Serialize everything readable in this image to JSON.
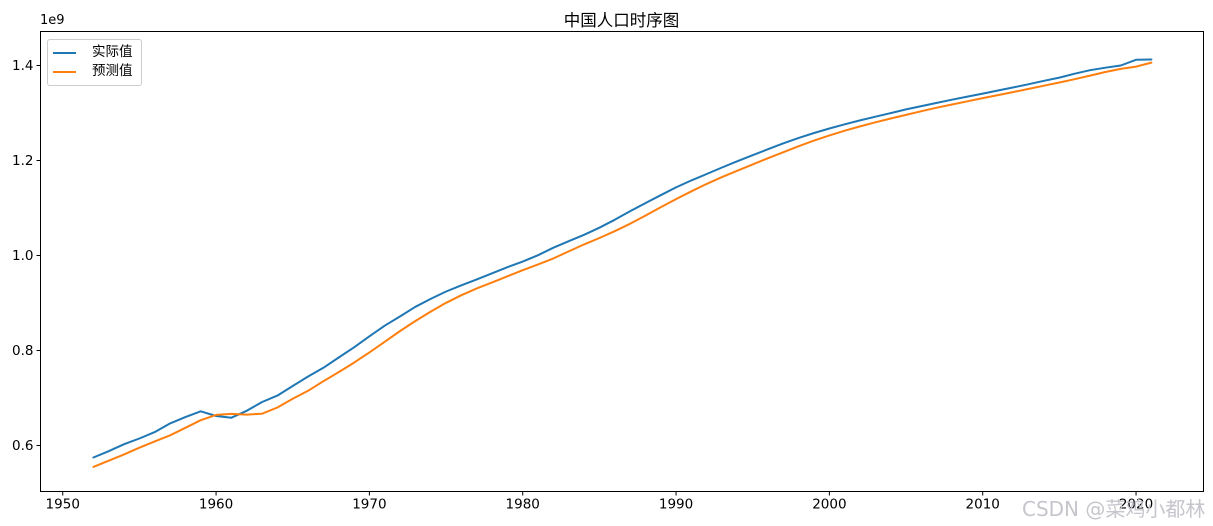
{
  "figure": {
    "watermark": "CSDN @菜鸡小都林",
    "background": "#ffffff",
    "spine_color": "#000000",
    "legend_border_color": "#cccccc"
  },
  "chart_data": {
    "type": "line",
    "title": "中国人口时序图",
    "xlabel": "",
    "ylabel": "",
    "y_offset_label": "1e9",
    "grid": false,
    "legend_position": "upper left",
    "xlim": [
      1948.55,
      2024.4
    ],
    "ylim": [
      0.5032,
      1.4716
    ],
    "xtick_values": [
      1950,
      1960,
      1970,
      1980,
      1990,
      2000,
      2010,
      2020
    ],
    "xtick_labels": [
      "1950",
      "1960",
      "1970",
      "1980",
      "1990",
      "2000",
      "2010",
      "2020"
    ],
    "ytick_values": [
      0.6,
      0.8,
      1.0,
      1.2,
      1.4
    ],
    "ytick_labels": [
      "0.6",
      "0.8",
      "1.0",
      "1.2",
      "1.4"
    ],
    "x": [
      1952,
      1953,
      1954,
      1955,
      1956,
      1957,
      1958,
      1959,
      1960,
      1961,
      1962,
      1963,
      1964,
      1965,
      1966,
      1967,
      1968,
      1969,
      1970,
      1971,
      1972,
      1973,
      1974,
      1975,
      1976,
      1977,
      1978,
      1979,
      1980,
      1981,
      1982,
      1983,
      1984,
      1985,
      1986,
      1987,
      1988,
      1989,
      1990,
      1991,
      1992,
      1993,
      1994,
      1995,
      1996,
      1997,
      1998,
      1999,
      2000,
      2001,
      2002,
      2003,
      2004,
      2005,
      2006,
      2007,
      2008,
      2009,
      2010,
      2011,
      2012,
      2013,
      2014,
      2015,
      2016,
      2017,
      2018,
      2019,
      2020,
      2021
    ],
    "series": [
      {
        "name": "实际值",
        "color": "#1f77b4",
        "values": [
          0.5748,
          0.588,
          0.6027,
          0.6147,
          0.6283,
          0.6465,
          0.6599,
          0.6721,
          0.6621,
          0.6586,
          0.673,
          0.6917,
          0.705,
          0.7254,
          0.7454,
          0.7637,
          0.7853,
          0.8067,
          0.8299,
          0.8523,
          0.8718,
          0.8921,
          0.9086,
          0.9242,
          0.9372,
          0.9497,
          0.9626,
          0.9754,
          0.9871,
          1.0007,
          1.0165,
          1.0301,
          1.0436,
          1.0585,
          1.0751,
          1.093,
          1.1103,
          1.127,
          1.1433,
          1.1582,
          1.1717,
          1.1852,
          1.1985,
          1.2112,
          1.2239,
          1.2363,
          1.2476,
          1.2579,
          1.2674,
          1.2763,
          1.2845,
          1.2923,
          1.2999,
          1.3076,
          1.3145,
          1.3213,
          1.328,
          1.3345,
          1.3409,
          1.3474,
          1.354,
          1.3607,
          1.3678,
          1.3746,
          1.3827,
          1.3901,
          1.3954,
          1.4,
          1.4121,
          1.4126
        ]
      },
      {
        "name": "预测值",
        "color": "#ff7f0e",
        "values": [
          0.555,
          0.568,
          0.5814,
          0.5954,
          0.6087,
          0.6215,
          0.6374,
          0.6532,
          0.6645,
          0.6665,
          0.665,
          0.667,
          0.68,
          0.6984,
          0.7152,
          0.7354,
          0.7546,
          0.7745,
          0.796,
          0.8183,
          0.8411,
          0.8621,
          0.882,
          0.9004,
          0.9164,
          0.9307,
          0.9435,
          0.9562,
          0.969,
          0.9813,
          0.9939,
          1.0086,
          1.0233,
          1.0369,
          1.0511,
          1.0668,
          1.0841,
          1.1017,
          1.1187,
          1.1352,
          1.1508,
          1.165,
          1.1785,
          1.1919,
          1.2049,
          1.2176,
          1.2301,
          1.242,
          1.2528,
          1.2627,
          1.2719,
          1.2804,
          1.2884,
          1.2961,
          1.3038,
          1.3111,
          1.3179,
          1.3247,
          1.3313,
          1.3377,
          1.3442,
          1.3507,
          1.3574,
          1.3643,
          1.3712,
          1.3787,
          1.3864,
          1.3928,
          1.3977,
          1.4061
        ]
      }
    ]
  }
}
